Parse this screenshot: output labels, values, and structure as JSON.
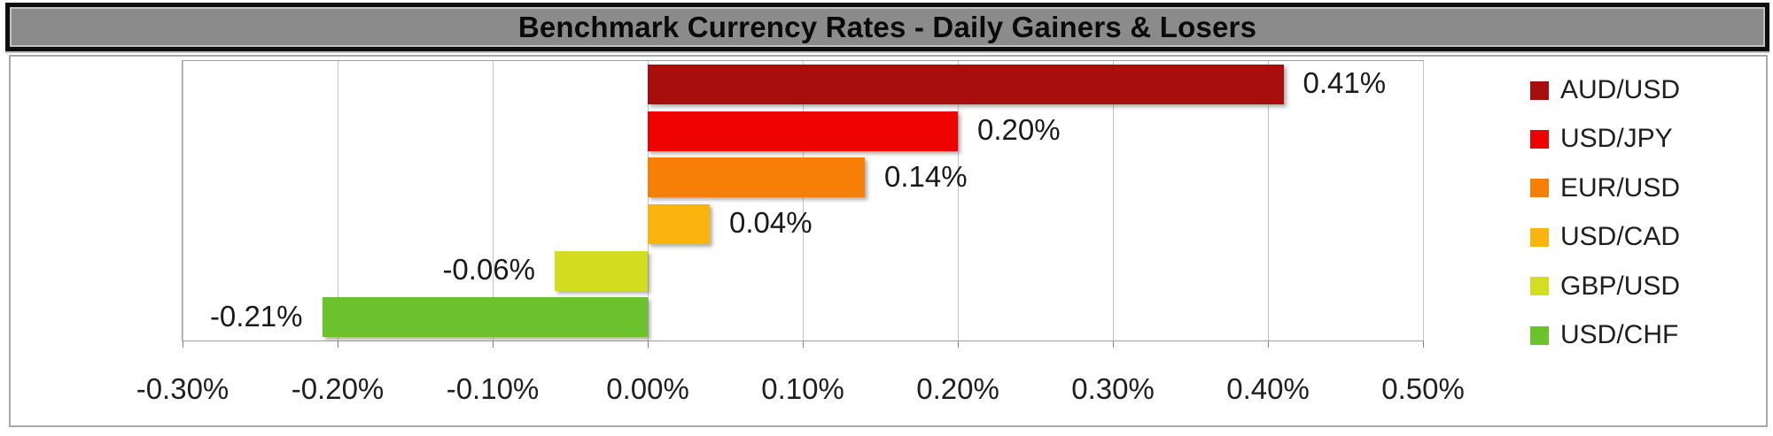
{
  "title": "Benchmark Currency Rates - Daily Gainers & Losers",
  "colors": {
    "title_bg": "#8b8b8b",
    "title_border": "#0d0d0d",
    "chart_border": "#a8a8a8",
    "plot_border": "#a0a0a0",
    "gridline": "#c3c3c3",
    "axis_tick": "#808080",
    "text": "#1f1f1f"
  },
  "chart_data": {
    "type": "bar",
    "orientation": "horizontal",
    "title": "Benchmark Currency Rates - Daily Gainers & Losers",
    "categories": [
      "AUD/USD",
      "USD/JPY",
      "EUR/USD",
      "USD/CAD",
      "GBP/USD",
      "USD/CHF"
    ],
    "values": [
      0.41,
      0.2,
      0.14,
      0.04,
      -0.06,
      -0.21
    ],
    "value_labels": [
      "0.41%",
      "0.20%",
      "0.14%",
      "0.04%",
      "-0.06%",
      "-0.21%"
    ],
    "bar_colors": [
      "#a90e0e",
      "#ee0202",
      "#f77e07",
      "#fbb30d",
      "#d3de20",
      "#6bc22d"
    ],
    "xlabel": "",
    "ylabel": "",
    "xlim": [
      -0.3,
      0.5
    ],
    "x_tick_values": [
      -0.3,
      -0.2,
      -0.1,
      0.0,
      0.1,
      0.2,
      0.3,
      0.4,
      0.5
    ],
    "x_tick_labels": [
      "-0.30%",
      "-0.20%",
      "-0.10%",
      "0.00%",
      "0.10%",
      "0.20%",
      "0.30%",
      "0.40%",
      "0.50%"
    ],
    "grid": true,
    "legend_position": "right",
    "legend": [
      {
        "label": "AUD/USD",
        "color": "#a90e0e"
      },
      {
        "label": "USD/JPY",
        "color": "#ee0202"
      },
      {
        "label": "EUR/USD",
        "color": "#f77e07"
      },
      {
        "label": "USD/CAD",
        "color": "#fbb30d"
      },
      {
        "label": "GBP/USD",
        "color": "#d3de20"
      },
      {
        "label": "USD/CHF",
        "color": "#6bc22d"
      }
    ]
  }
}
